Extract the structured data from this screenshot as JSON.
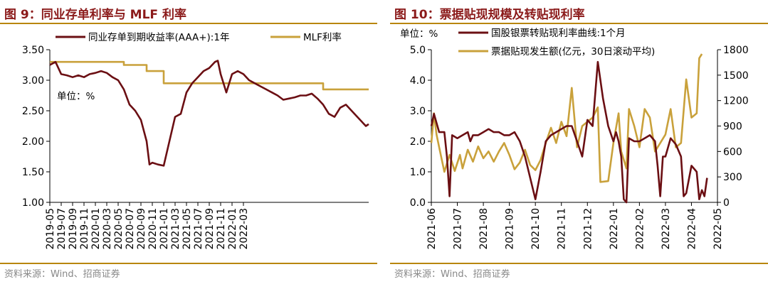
{
  "colors": {
    "dark_red": "#6B0F13",
    "gold": "#C9A13B",
    "title_red": "#8B1A1A",
    "rule": "#B8860B"
  },
  "source_text": "资料来源：Wind、招商证券",
  "chart_data": [
    {
      "type": "line",
      "title": "图 9：同业存单利率与 MLF 利率",
      "unit_note": "单位：%",
      "ylim": [
        1.0,
        3.5
      ],
      "yticks": [
        "3.50",
        "3.00",
        "2.50",
        "2.00",
        "1.50",
        "1.00"
      ],
      "x_range": [
        "2019-05",
        "2022-05"
      ],
      "xticks": [
        "2019-05",
        "2019-07",
        "2019-09",
        "2019-11",
        "2020-01",
        "2020-03",
        "2020-05",
        "2020-07",
        "2020-09",
        "2020-11",
        "2021-01",
        "2021-03",
        "2021-05",
        "2021-07",
        "2021-09",
        "2021-11",
        "2022-01",
        "2022-03"
      ],
      "series": [
        {
          "name": "同业存单到期收益率(AAA+):1年",
          "color": "#6B0F13",
          "points": [
            [
              0,
              3.25
            ],
            [
              1,
              3.3
            ],
            [
              2,
              3.1
            ],
            [
              3,
              3.08
            ],
            [
              4,
              3.05
            ],
            [
              5,
              3.08
            ],
            [
              6,
              3.05
            ],
            [
              7,
              3.1
            ],
            [
              8,
              3.12
            ],
            [
              9,
              3.15
            ],
            [
              10,
              3.12
            ],
            [
              11,
              3.05
            ],
            [
              12,
              3.0
            ],
            [
              13,
              2.85
            ],
            [
              14,
              2.6
            ],
            [
              15,
              2.5
            ],
            [
              16,
              2.35
            ],
            [
              17,
              2.0
            ],
            [
              17.5,
              1.62
            ],
            [
              18,
              1.65
            ],
            [
              19,
              1.62
            ],
            [
              20,
              1.6
            ],
            [
              21,
              2.0
            ],
            [
              22,
              2.4
            ],
            [
              23,
              2.45
            ],
            [
              24,
              2.8
            ],
            [
              25,
              2.95
            ],
            [
              26,
              3.05
            ],
            [
              27,
              3.15
            ],
            [
              28,
              3.2
            ],
            [
              29,
              3.3
            ],
            [
              29.5,
              3.32
            ],
            [
              30,
              3.1
            ],
            [
              31,
              2.8
            ],
            [
              32,
              3.1
            ],
            [
              33,
              3.15
            ],
            [
              34,
              3.1
            ],
            [
              35,
              3.0
            ],
            [
              36,
              2.95
            ],
            [
              37,
              2.9
            ],
            [
              38,
              2.85
            ],
            [
              39,
              2.8
            ],
            [
              40,
              2.75
            ],
            [
              41,
              2.68
            ],
            [
              42,
              2.7
            ],
            [
              43,
              2.72
            ],
            [
              44,
              2.75
            ],
            [
              45,
              2.75
            ],
            [
              46,
              2.78
            ],
            [
              47,
              2.7
            ],
            [
              48,
              2.6
            ],
            [
              49,
              2.45
            ],
            [
              50,
              2.4
            ],
            [
              51,
              2.55
            ],
            [
              52,
              2.6
            ],
            [
              53,
              2.5
            ],
            [
              54,
              2.4
            ],
            [
              55,
              2.3
            ],
            [
              55.5,
              2.25
            ],
            [
              56,
              2.28
            ]
          ]
        },
        {
          "name": "MLF利率",
          "color": "#C9A13B",
          "points": [
            [
              0,
              3.3
            ],
            [
              13,
              3.3
            ],
            [
              13,
              3.25
            ],
            [
              17,
              3.25
            ],
            [
              17,
              3.15
            ],
            [
              20,
              3.15
            ],
            [
              20,
              2.95
            ],
            [
              48,
              2.95
            ],
            [
              48,
              2.85
            ],
            [
              56,
              2.85
            ]
          ]
        }
      ]
    },
    {
      "type": "line",
      "title": "图 10：票据贴现规模及转贴现利率",
      "unit_note": "单位：%",
      "ylim": [
        0.0,
        5.0
      ],
      "y2lim": [
        0,
        1800
      ],
      "yticks": [
        "5.0",
        "4.0",
        "3.0",
        "2.0",
        "1.0",
        "0.0"
      ],
      "y2ticks": [
        "1800",
        "1500",
        "1200",
        "900",
        "600",
        "300",
        "0"
      ],
      "x_range": [
        "2021-06",
        "2022-05"
      ],
      "xticks": [
        "2021-06",
        "2021-07",
        "2021-08",
        "2021-09",
        "2021-10",
        "2021-11",
        "2021-12",
        "2022-01",
        "2022-02",
        "2022-03",
        "2022-04",
        "2022-05"
      ],
      "series": [
        {
          "name": "国股银票转贴现利率曲线:1个月",
          "axis": "left",
          "color": "#6B0F13",
          "points": [
            [
              0,
              2.5
            ],
            [
              0.1,
              2.9
            ],
            [
              0.3,
              2.3
            ],
            [
              0.5,
              2.3
            ],
            [
              0.6,
              1.5
            ],
            [
              0.7,
              0.2
            ],
            [
              0.8,
              2.2
            ],
            [
              1.0,
              2.1
            ],
            [
              1.2,
              2.2
            ],
            [
              1.4,
              2.3
            ],
            [
              1.5,
              2.0
            ],
            [
              1.6,
              2.2
            ],
            [
              1.8,
              2.2
            ],
            [
              2.0,
              2.3
            ],
            [
              2.2,
              2.4
            ],
            [
              2.4,
              2.3
            ],
            [
              2.6,
              2.3
            ],
            [
              2.8,
              2.2
            ],
            [
              3.0,
              2.2
            ],
            [
              3.2,
              2.3
            ],
            [
              3.4,
              2.0
            ],
            [
              3.6,
              1.5
            ],
            [
              3.8,
              0.8
            ],
            [
              4.0,
              0.1
            ],
            [
              4.2,
              1.0
            ],
            [
              4.4,
              2.0
            ],
            [
              4.6,
              2.2
            ],
            [
              4.8,
              2.3
            ],
            [
              5.0,
              2.4
            ],
            [
              5.2,
              2.5
            ],
            [
              5.4,
              2.5
            ],
            [
              5.6,
              2.0
            ],
            [
              5.8,
              1.5
            ],
            [
              6.0,
              2.7
            ],
            [
              6.2,
              2.5
            ],
            [
              6.4,
              4.6
            ],
            [
              6.6,
              3.4
            ],
            [
              6.8,
              2.5
            ],
            [
              7.0,
              2.0
            ],
            [
              7.1,
              2.3
            ],
            [
              7.2,
              2.0
            ],
            [
              7.3,
              1.5
            ],
            [
              7.4,
              0.1
            ],
            [
              7.5,
              0.0
            ],
            [
              7.6,
              2.1
            ],
            [
              7.8,
              2.0
            ],
            [
              8.0,
              2.0
            ],
            [
              8.2,
              2.1
            ],
            [
              8.4,
              2.2
            ],
            [
              8.6,
              2.0
            ],
            [
              8.7,
              1.2
            ],
            [
              8.8,
              0.2
            ],
            [
              8.9,
              1.5
            ],
            [
              9.0,
              1.5
            ],
            [
              9.2,
              2.1
            ],
            [
              9.4,
              1.9
            ],
            [
              9.6,
              1.5
            ],
            [
              9.7,
              0.2
            ],
            [
              9.8,
              0.3
            ],
            [
              10.0,
              1.2
            ],
            [
              10.2,
              1.0
            ],
            [
              10.3,
              0.1
            ],
            [
              10.4,
              0.4
            ],
            [
              10.5,
              0.2
            ],
            [
              10.6,
              0.8
            ]
          ]
        },
        {
          "name": "票据贴现发生额(亿元，30日滚动平均)",
          "axis": "right",
          "color": "#C9A13B",
          "points": [
            [
              0,
              700
            ],
            [
              0.1,
              1050
            ],
            [
              0.2,
              800
            ],
            [
              0.3,
              650
            ],
            [
              0.5,
              360
            ],
            [
              0.7,
              560
            ],
            [
              0.9,
              370
            ],
            [
              1.1,
              560
            ],
            [
              1.2,
              400
            ],
            [
              1.4,
              620
            ],
            [
              1.6,
              480
            ],
            [
              1.8,
              660
            ],
            [
              2.0,
              520
            ],
            [
              2.2,
              600
            ],
            [
              2.4,
              480
            ],
            [
              2.6,
              600
            ],
            [
              2.8,
              700
            ],
            [
              3.0,
              560
            ],
            [
              3.2,
              390
            ],
            [
              3.4,
              470
            ],
            [
              3.6,
              620
            ],
            [
              3.8,
              440
            ],
            [
              4.0,
              380
            ],
            [
              4.2,
              500
            ],
            [
              4.4,
              700
            ],
            [
              4.6,
              880
            ],
            [
              4.8,
              700
            ],
            [
              5.0,
              950
            ],
            [
              5.2,
              780
            ],
            [
              5.4,
              1350
            ],
            [
              5.6,
              650
            ],
            [
              5.8,
              900
            ],
            [
              6.0,
              950
            ],
            [
              6.2,
              1000
            ],
            [
              6.4,
              1120
            ],
            [
              6.5,
              240
            ],
            [
              6.8,
              250
            ],
            [
              7.0,
              700
            ],
            [
              7.2,
              1050
            ],
            [
              7.3,
              600
            ],
            [
              7.5,
              400
            ],
            [
              7.6,
              1100
            ],
            [
              7.8,
              900
            ],
            [
              8.0,
              650
            ],
            [
              8.2,
              1100
            ],
            [
              8.4,
              1000
            ],
            [
              8.6,
              600
            ],
            [
              8.8,
              700
            ],
            [
              9.0,
              800
            ],
            [
              9.2,
              1100
            ],
            [
              9.4,
              650
            ],
            [
              9.6,
              700
            ],
            [
              9.8,
              1450
            ],
            [
              10.0,
              1000
            ],
            [
              10.2,
              1050
            ],
            [
              10.3,
              1700
            ],
            [
              10.4,
              1750
            ]
          ]
        }
      ]
    }
  ]
}
